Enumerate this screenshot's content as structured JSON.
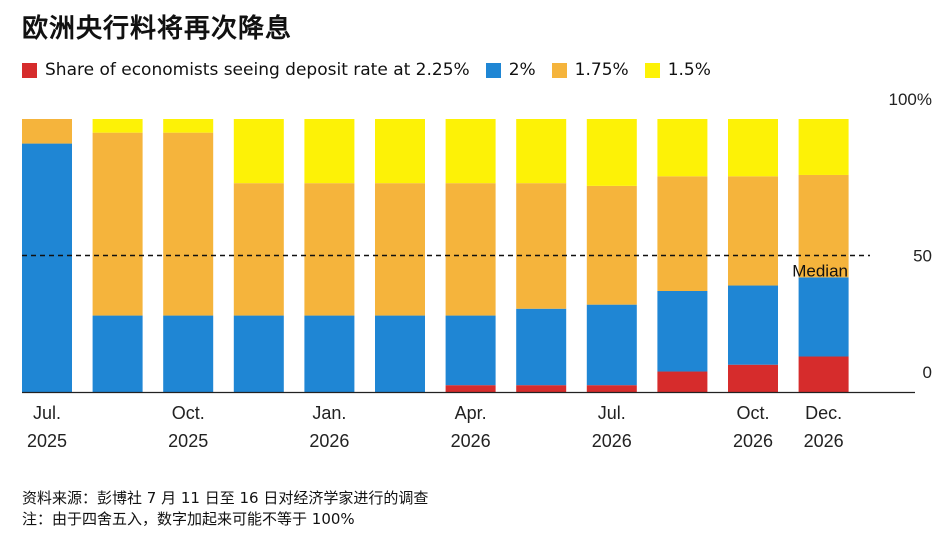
{
  "title": "欧洲央行料将再次降息",
  "legend": [
    {
      "label": "Share of economists seeing deposit rate at 2.25%",
      "color": "#d62c2c"
    },
    {
      "label": "2%",
      "color": "#1f86d4"
    },
    {
      "label": "1.75%",
      "color": "#f5b43c"
    },
    {
      "label": "1.5%",
      "color": "#fdf206"
    }
  ],
  "footer": {
    "source": "资料来源：彭博社 7 月 11 日至 16 日对经济学家进行的调查",
    "note": "注：由于四舍五入，数字加起来可能不等于 100%"
  },
  "chart_data": {
    "type": "bar",
    "stacked": true,
    "categories": [
      "Jul. 2025",
      "",
      "Oct. 2025",
      "",
      "Jan. 2026",
      "",
      "Apr. 2026",
      "",
      "Jul. 2026",
      "",
      "Oct. 2026",
      "Dec. 2026"
    ],
    "tick_labels": [
      {
        "index": 0,
        "line1": "Jul.",
        "line2": "2025"
      },
      {
        "index": 2,
        "line1": "Oct.",
        "line2": "2025"
      },
      {
        "index": 4,
        "line1": "Jan.",
        "line2": "2026"
      },
      {
        "index": 6,
        "line1": "Apr.",
        "line2": "2026"
      },
      {
        "index": 8,
        "line1": "Jul.",
        "line2": "2026"
      },
      {
        "index": 10,
        "line1": "Oct.",
        "line2": "2026"
      },
      {
        "index": 11,
        "line1": "Dec.",
        "line2": "2026"
      }
    ],
    "series": [
      {
        "name": "2.25%",
        "color": "#d62c2c",
        "values": [
          0,
          0,
          0,
          0,
          0,
          0,
          2.5,
          2.5,
          2.5,
          7.5,
          10,
          13
        ]
      },
      {
        "name": "2%",
        "color": "#1f86d4",
        "values": [
          91,
          28,
          28,
          28,
          28,
          28,
          25.5,
          28,
          29.5,
          29.5,
          29,
          29
        ]
      },
      {
        "name": "1.75%",
        "color": "#f5b43c",
        "values": [
          9,
          67,
          67,
          48.5,
          48.5,
          48.5,
          48.5,
          46,
          43.5,
          42,
          40,
          37.5
        ]
      },
      {
        "name": "1.5%",
        "color": "#fdf206",
        "values": [
          0,
          5,
          5,
          23.5,
          23.5,
          23.5,
          23.5,
          23.5,
          24.5,
          21,
          21,
          20.5
        ]
      }
    ],
    "ylim": [
      0,
      100
    ],
    "yticks": [
      {
        "value": 100,
        "label": "100%"
      },
      {
        "value": 50,
        "label": "50"
      },
      {
        "value": 0,
        "label": "0"
      }
    ],
    "median": {
      "value": 50,
      "label": "Median"
    },
    "grid": false,
    "legend_position": "top-left"
  }
}
